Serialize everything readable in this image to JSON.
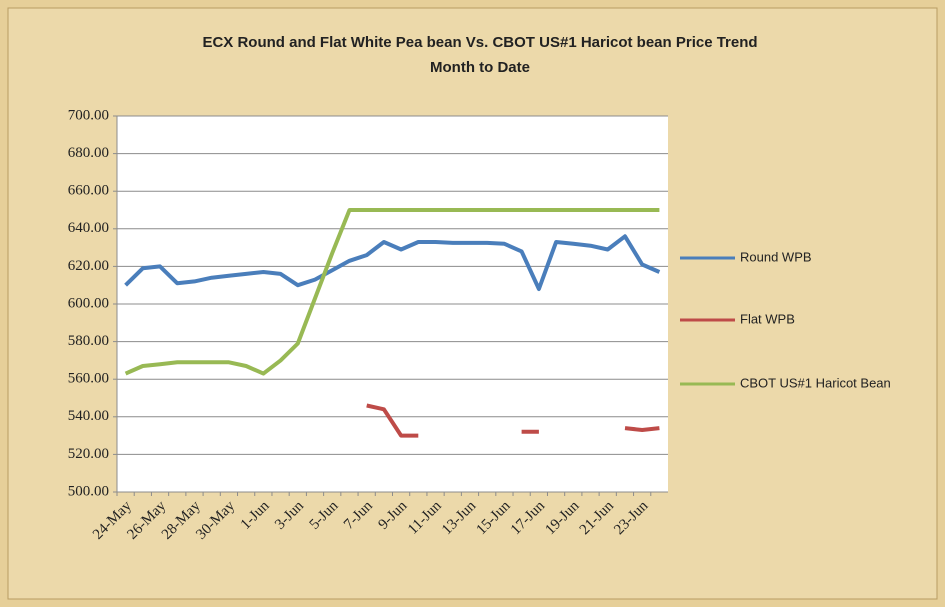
{
  "chart_data": {
    "type": "line",
    "title": "ECX Round and Flat White Pea bean Vs. CBOT US#1 Haricot bean Price Trend",
    "subtitle": "Month to Date",
    "categories": [
      "24-May",
      null,
      "26-May",
      null,
      "28-May",
      null,
      "30-May",
      null,
      "1-Jun",
      null,
      "3-Jun",
      null,
      "5-Jun",
      null,
      "7-Jun",
      null,
      "9-Jun",
      null,
      "11-Jun",
      null,
      "13-Jun",
      null,
      "15-Jun",
      null,
      "17-Jun",
      null,
      "19-Jun",
      null,
      "21-Jun",
      null,
      "23-Jun",
      null
    ],
    "series": [
      {
        "name": "Round WPB",
        "color": "#4a7ebb",
        "values": [
          610,
          619,
          620,
          611,
          612,
          614,
          615,
          616,
          617,
          616,
          610,
          613,
          618,
          623,
          626,
          633,
          629,
          633,
          633,
          632.5,
          632.5,
          632.5,
          632,
          628,
          608,
          633,
          632,
          631,
          629,
          636,
          621,
          617
        ]
      },
      {
        "name": "Flat WPB",
        "color": "#be4b48",
        "values": [
          null,
          null,
          null,
          null,
          null,
          null,
          null,
          null,
          null,
          null,
          null,
          null,
          null,
          null,
          546,
          544,
          530,
          530,
          null,
          null,
          null,
          null,
          null,
          532,
          532,
          null,
          null,
          null,
          null,
          534,
          533,
          534
        ]
      },
      {
        "name": "CBOT US#1 Haricot  Bean",
        "color": "#98b954",
        "values": [
          563,
          567,
          568,
          569,
          569,
          569,
          569,
          567,
          563,
          570,
          579,
          603,
          627,
          650,
          650,
          650,
          650,
          650,
          650,
          650,
          650,
          650,
          650,
          650,
          650,
          650,
          650,
          650,
          650,
          650,
          650,
          650
        ]
      }
    ],
    "ylim": [
      500,
      700
    ],
    "yticks": [
      {
        "value": 500,
        "label": "500.00"
      },
      {
        "value": 520,
        "label": "520.00"
      },
      {
        "value": 540,
        "label": "540.00"
      },
      {
        "value": 560,
        "label": "560.00"
      },
      {
        "value": 580,
        "label": "580.00"
      },
      {
        "value": 600,
        "label": "600.00"
      },
      {
        "value": 620,
        "label": "620.00"
      },
      {
        "value": 640,
        "label": "640.00"
      },
      {
        "value": 660,
        "label": "660.00"
      },
      {
        "value": 680,
        "label": "680.00"
      },
      {
        "value": 700,
        "label": "700.00"
      }
    ],
    "grid": true,
    "legend": "right"
  }
}
